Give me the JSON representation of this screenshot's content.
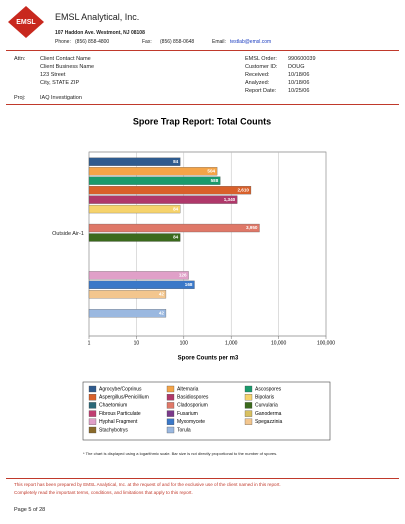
{
  "header": {
    "logo": "EMSL",
    "company": "EMSL Analytical, Inc.",
    "address": "107 Haddon Ave.  Westmont, NJ  08108",
    "phone_label": "Phone:",
    "phone": "(856) 858-4800",
    "fax_label": "Fax:",
    "fax": "(856) 858-0648",
    "email_label": "Email:",
    "email": "testlab@emsl.com"
  },
  "client": {
    "attn_label": "Attn:",
    "lines": [
      "Client Contact Name",
      "Client Business Name",
      "123 Street",
      "City, STATE  ZIP"
    ],
    "proj_label": "Proj:",
    "proj": "IAQ Investigation"
  },
  "order": {
    "rows": [
      [
        "EMSL Order:",
        "990600039"
      ],
      [
        "Customer ID:",
        "DOUG"
      ],
      [
        "Received:",
        "10/18/06"
      ],
      [
        "Analyzed:",
        "10/18/06"
      ],
      [
        "Report Date:",
        "10/25/06"
      ]
    ]
  },
  "chart_data": {
    "type": "bar",
    "orientation": "horizontal",
    "title": "Spore Trap Report: Total Counts",
    "x_label": "Spore Counts per m3",
    "categories": [
      "Outside Air-1"
    ],
    "log_x": true,
    "grid": true,
    "xlim": [
      1,
      100000
    ],
    "xticks": [
      1,
      10,
      100,
      {
        "value": 1000,
        "label": "1,000"
      },
      {
        "value": 10000,
        "label": "10,000"
      },
      {
        "value": 100000,
        "label": "100,000"
      }
    ],
    "series": [
      {
        "name": "Agrocybe/Coprinus",
        "color": "#2f5b8e",
        "values": [
          84
        ]
      },
      {
        "name": "Alternaria",
        "color": "#f4a448",
        "values": [
          504
        ]
      },
      {
        "name": "Ascospores",
        "color": "#1a9a6c",
        "values": [
          588
        ]
      },
      {
        "name": "Aspergillus/Penicillium",
        "color": "#d9602a",
        "values": [
          2610
        ],
        "value_labels": [
          "2,610"
        ]
      },
      {
        "name": "Basidiospores",
        "color": "#b0386a",
        "values": [
          1340
        ],
        "value_labels": [
          "1,340"
        ]
      },
      {
        "name": "Bipolaris",
        "color": "#f6d36c",
        "values": [
          84
        ]
      },
      {
        "name": "Chaetomium",
        "color": "#2a6878",
        "values": [
          null
        ]
      },
      {
        "name": "Cladosporium",
        "color": "#df7868",
        "values": [
          3950
        ],
        "value_labels": [
          "3,950"
        ]
      },
      {
        "name": "Curvularia",
        "color": "#3b6a1c",
        "values": [
          84
        ]
      },
      {
        "name": "Fibrous Particulate",
        "color": "#c03f72",
        "values": [
          null
        ]
      },
      {
        "name": "Fusarium",
        "color": "#7a3a8a",
        "values": [
          null
        ]
      },
      {
        "name": "Ganoderma",
        "color": "#d8c060",
        "values": [
          null
        ]
      },
      {
        "name": "Hyphal Fragment",
        "color": "#e0a0c8",
        "values": [
          126
        ]
      },
      {
        "name": "Myxomycete",
        "color": "#3a78c8",
        "values": [
          168
        ]
      },
      {
        "name": "Spegazzinia",
        "color": "#f3c68e",
        "values": [
          42
        ]
      },
      {
        "name": "Stachybotrys",
        "color": "#8a6a2a",
        "values": [
          null
        ]
      },
      {
        "name": "Torula",
        "color": "#9ab8e0",
        "values": [
          42
        ]
      }
    ]
  },
  "chart_note": "* The chart is displayed using a logarithmic scale. Bar size is not directly proportional to the number of spores.",
  "footer": {
    "disclaimer": [
      "This report has been prepared by EMSL Analytical, Inc. at the request of and for the exclusive use of the client named in this report.",
      "Completely read the important terms, conditions, and limitations that apply to this report."
    ],
    "page": "Page 5 of 28"
  }
}
